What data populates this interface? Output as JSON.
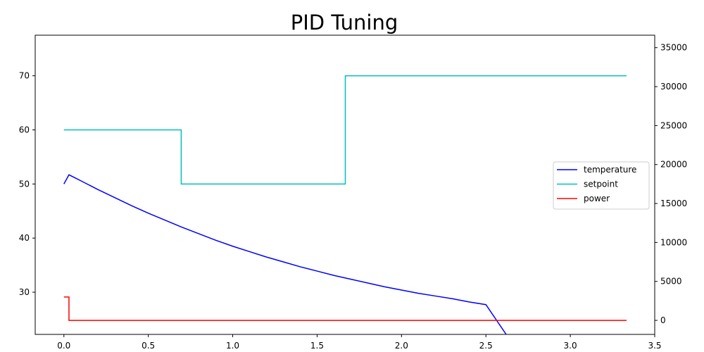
{
  "chart_data": {
    "type": "line",
    "title": "PID Tuning",
    "xlabel": "",
    "ylabel": "",
    "y2label": "",
    "xlim": [
      -0.17,
      3.5
    ],
    "ylim": [
      22.2,
      77.5
    ],
    "y2lim": [
      -1800,
      36600
    ],
    "xticks": [
      0.0,
      0.5,
      1.0,
      1.5,
      2.0,
      2.5,
      3.0,
      3.5
    ],
    "xtick_labels": [
      "0.0",
      "0.5",
      "1.0",
      "1.5",
      "2.0",
      "2.5",
      "3.0",
      "3.5"
    ],
    "yticks": [
      30,
      40,
      50,
      60,
      70
    ],
    "ytick_labels": [
      "30",
      "40",
      "50",
      "60",
      "70"
    ],
    "y2ticks": [
      0,
      5000,
      10000,
      15000,
      20000,
      25000,
      30000,
      35000
    ],
    "y2tick_labels": [
      "0",
      "5000",
      "10000",
      "15000",
      "20000",
      "25000",
      "30000",
      "35000"
    ],
    "grid": false,
    "legend_position": "center-right",
    "series": [
      {
        "name": "temperature",
        "axis": "left",
        "color": "#0000ff",
        "x": [
          0.0,
          0.03,
          0.1,
          0.2,
          0.3,
          0.4,
          0.5,
          0.6,
          0.7,
          0.8,
          0.9,
          1.0,
          1.1,
          1.2,
          1.3,
          1.4,
          1.5,
          1.6,
          1.7,
          1.8,
          1.9,
          2.0,
          2.1,
          2.2,
          2.3,
          2.4,
          2.5,
          2.62
        ],
        "y": [
          50.0,
          51.7,
          50.6,
          49.0,
          47.5,
          46.0,
          44.6,
          43.3,
          42.0,
          40.8,
          39.6,
          38.5,
          37.5,
          36.5,
          35.6,
          34.7,
          33.9,
          33.1,
          32.4,
          31.7,
          31.0,
          30.4,
          29.8,
          29.3,
          28.8,
          28.2,
          27.7,
          22.2
        ]
      },
      {
        "name": "setpoint",
        "axis": "left",
        "color": "#00bfbf",
        "x": [
          0.0,
          0.695,
          0.695,
          1.667,
          1.667,
          3.333
        ],
        "y": [
          60,
          60,
          50,
          50,
          70,
          70
        ]
      },
      {
        "name": "power",
        "axis": "right",
        "color": "#ff0000",
        "x": [
          0.0,
          0.03,
          0.03,
          3.333
        ],
        "y": [
          3000,
          3000,
          0,
          0
        ]
      }
    ]
  }
}
